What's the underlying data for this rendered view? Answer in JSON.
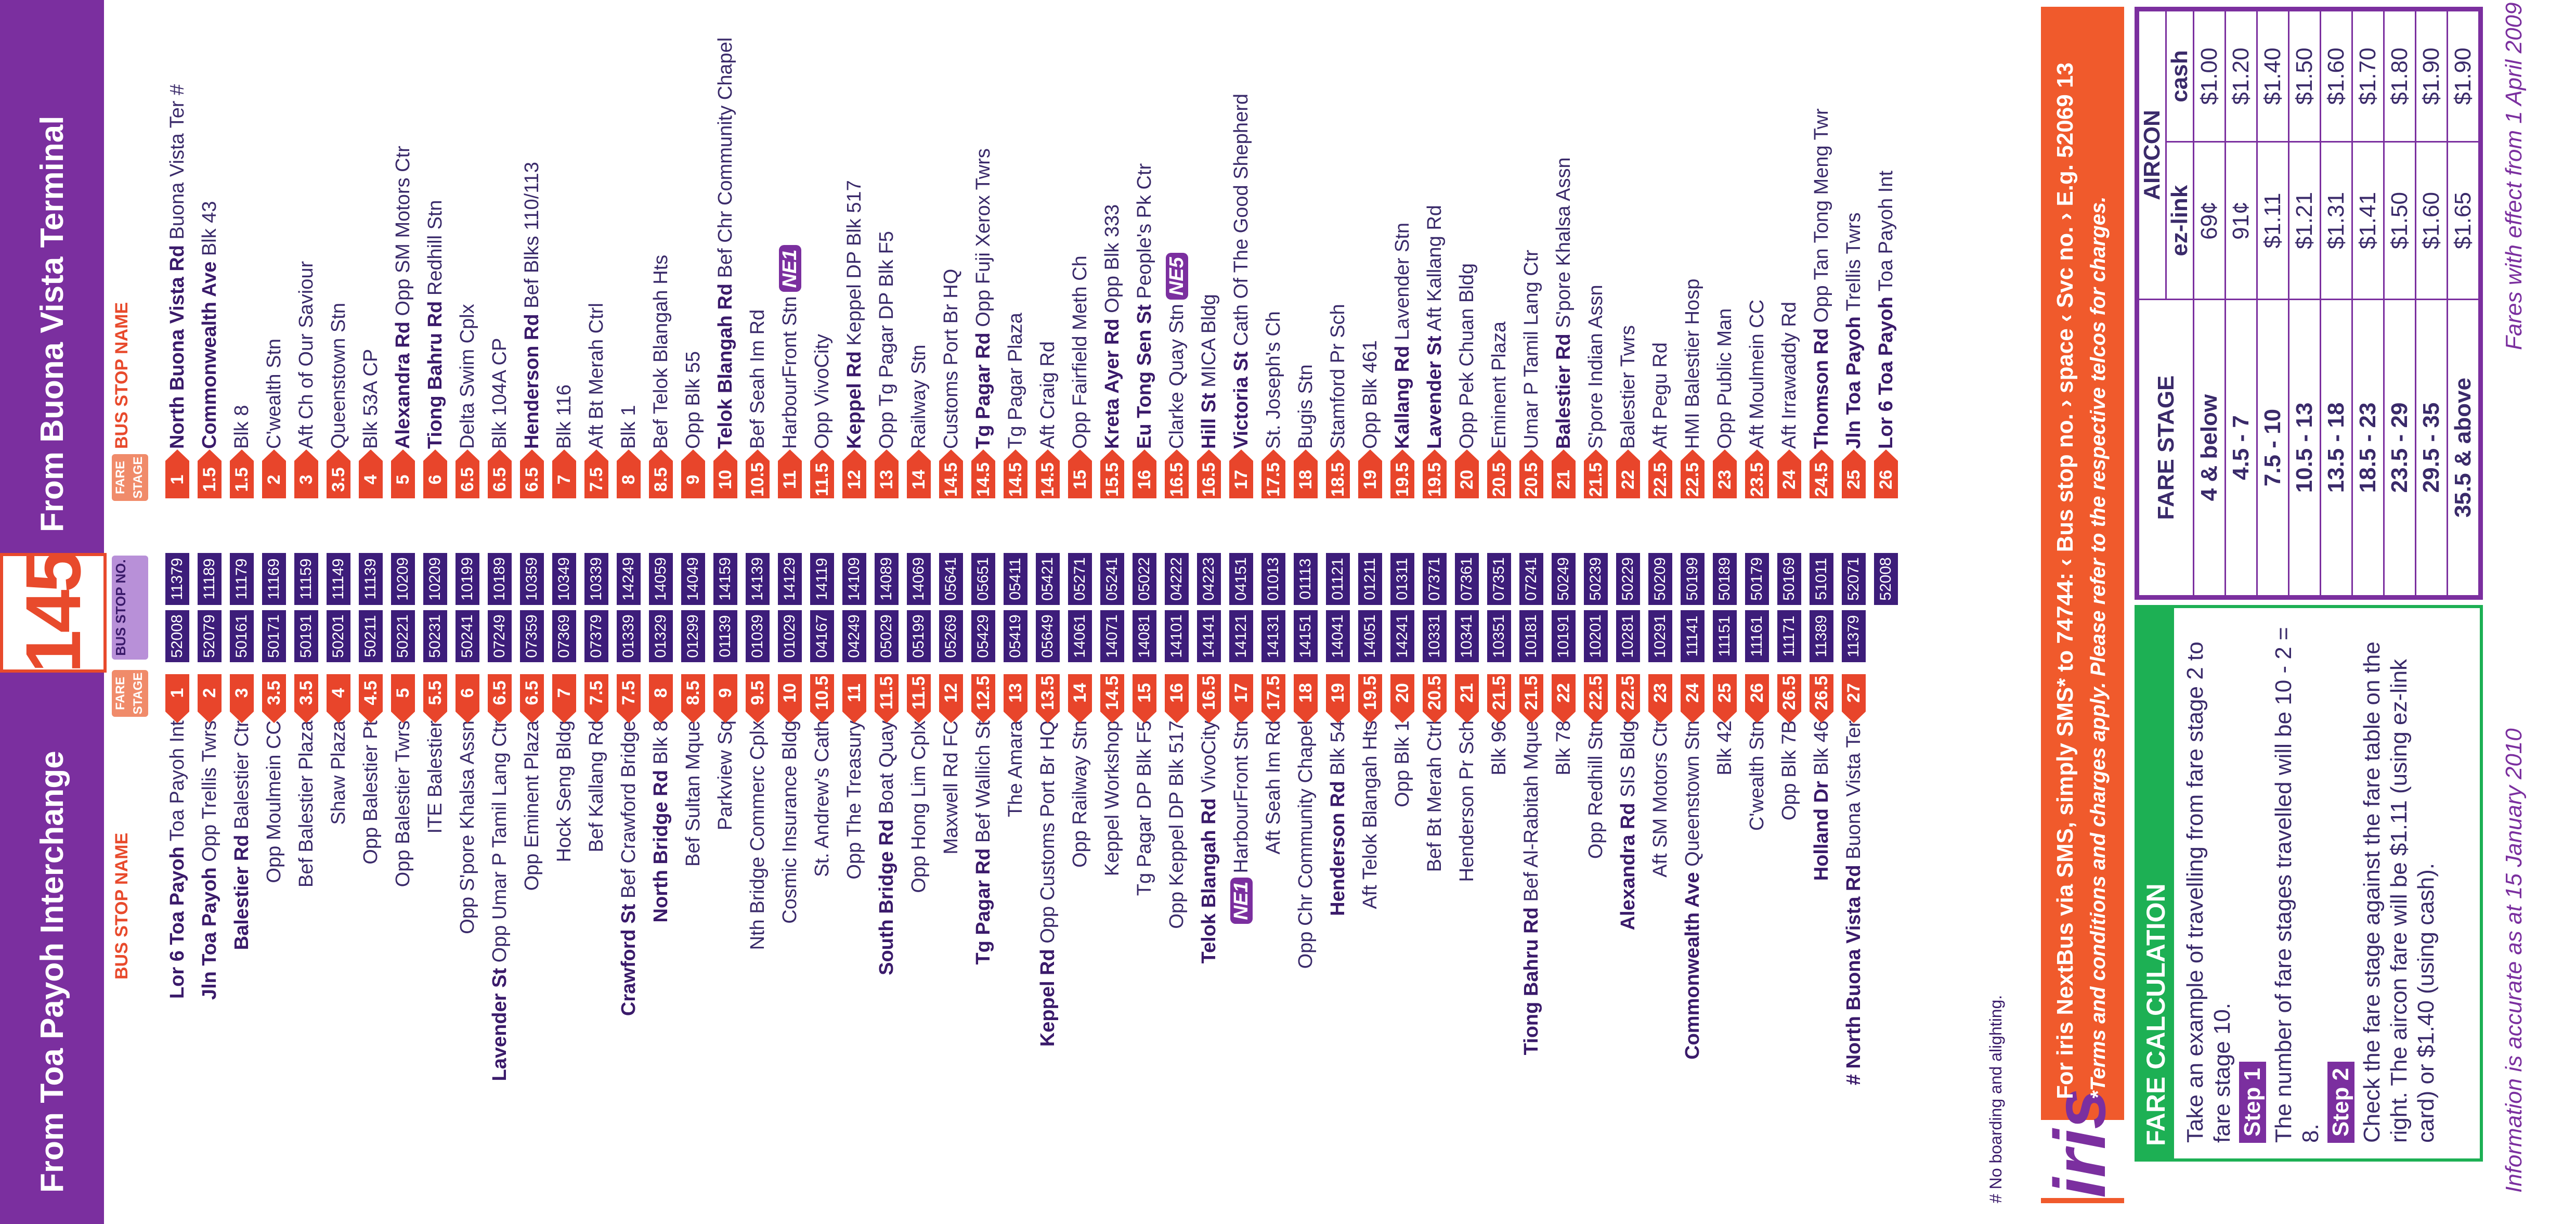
{
  "header": {
    "left_title": "From Toa Payoh Interchange",
    "right_title": "From Buona Vista Terminal",
    "route": "145"
  },
  "column_heads": {
    "bus_stop_name": "BUS STOP NAME",
    "fare_stage": "FARE STAGE",
    "bus_stop_no": "BUS STOP NO."
  },
  "rows": [
    {
      "l_bold": "Lor 6 Toa Payoh",
      "l_rest": " Toa Payoh Int",
      "lf": "1",
      "ls": "52008",
      "rs": "11379",
      "rf": "1",
      "r_bold": "North Buona Vista Rd",
      "r_rest": " Buona Vista Ter #"
    },
    {
      "l_bold": "Jln Toa Payoh",
      "l_rest": " Opp Trellis Twrs",
      "lf": "2",
      "ls": "52079",
      "rs": "11189",
      "rf": "1.5",
      "r_bold": "Commonwealth Ave",
      "r_rest": " Blk 43"
    },
    {
      "l_bold": "Balestier Rd",
      "l_rest": " Balestier Ctr",
      "lf": "3",
      "ls": "50161",
      "rs": "11179",
      "rf": "1.5",
      "r_bold": "",
      "r_rest": "Blk 8"
    },
    {
      "l_bold": "",
      "l_rest": "Opp Moulmein CC",
      "lf": "3.5",
      "ls": "50171",
      "rs": "11169",
      "rf": "2",
      "r_bold": "",
      "r_rest": "C'wealth Stn"
    },
    {
      "l_bold": "",
      "l_rest": "Bef Balestier Plaza",
      "lf": "3.5",
      "ls": "50191",
      "rs": "11159",
      "rf": "3",
      "r_bold": "",
      "r_rest": "Aft Ch of Our Saviour"
    },
    {
      "l_bold": "",
      "l_rest": "Shaw Plaza",
      "lf": "4",
      "ls": "50201",
      "rs": "11149",
      "rf": "3.5",
      "r_bold": "",
      "r_rest": "Queenstown Stn"
    },
    {
      "l_bold": "",
      "l_rest": "Opp Balestier Pt",
      "lf": "4.5",
      "ls": "50211",
      "rs": "11139",
      "rf": "4",
      "r_bold": "",
      "r_rest": "Blk 53A CP"
    },
    {
      "l_bold": "",
      "l_rest": "Opp Balestier Twrs",
      "lf": "5",
      "ls": "50221",
      "rs": "10209",
      "rf": "5",
      "r_bold": "Alexandra Rd",
      "r_rest": " Opp SM Motors Ctr"
    },
    {
      "l_bold": "",
      "l_rest": "ITE Balestier",
      "lf": "5.5",
      "ls": "50231",
      "rs": "10209",
      "rf": "6",
      "r_bold": "Tiong Bahru Rd",
      "r_rest": " Redhill Stn"
    },
    {
      "l_bold": "",
      "l_rest": "Opp S'pore Khalsa Assn",
      "lf": "6",
      "ls": "50241",
      "rs": "10199",
      "rf": "6.5",
      "r_bold": "",
      "r_rest": "Delta Swim Cplx"
    },
    {
      "l_bold": "Lavender St",
      "l_rest": " Opp Umar P Tamil Lang Ctr",
      "lf": "6.5",
      "ls": "07249",
      "rs": "10189",
      "rf": "6.5",
      "r_bold": "",
      "r_rest": "Blk 104A CP"
    },
    {
      "l_bold": "",
      "l_rest": "Opp Eminent Plaza",
      "lf": "6.5",
      "ls": "07359",
      "rs": "10359",
      "rf": "6.5",
      "r_bold": "Henderson Rd",
      "r_rest": " Bef Blks 110/113"
    },
    {
      "l_bold": "",
      "l_rest": "Hock Seng Bldg",
      "lf": "7",
      "ls": "07369",
      "rs": "10349",
      "rf": "7",
      "r_bold": "",
      "r_rest": "Blk 116"
    },
    {
      "l_bold": "",
      "l_rest": "Bef Kallang Rd",
      "lf": "7.5",
      "ls": "07379",
      "rs": "10339",
      "rf": "7.5",
      "r_bold": "",
      "r_rest": "Aft Bt Merah Ctrl"
    },
    {
      "l_bold": "Crawford St",
      "l_rest": " Bef Crawford Bridge",
      "lf": "7.5",
      "ls": "01339",
      "rs": "14249",
      "rf": "8",
      "r_bold": "",
      "r_rest": "Blk 1"
    },
    {
      "l_bold": "North Bridge Rd",
      "l_rest": " Blk 8",
      "lf": "8",
      "ls": "01329",
      "rs": "14059",
      "rf": "8.5",
      "r_bold": "",
      "r_rest": "Bef Telok Blangah Hts"
    },
    {
      "l_bold": "",
      "l_rest": "Bef Sultan Mque",
      "lf": "8.5",
      "ls": "01299",
      "rs": "14049",
      "rf": "9",
      "r_bold": "",
      "r_rest": "Opp Blk 55"
    },
    {
      "l_bold": "",
      "l_rest": "Parkview Sq",
      "lf": "9",
      "ls": "01139",
      "rs": "14159",
      "rf": "10",
      "r_bold": "Telok Blangah Rd",
      "r_rest": " Bef Chr Community Chapel"
    },
    {
      "l_bold": "",
      "l_rest": "Nth Bridge Commerc Cplx",
      "lf": "9.5",
      "ls": "01039",
      "rs": "14139",
      "rf": "10.5",
      "r_bold": "",
      "r_rest": "Bef Seah Im Rd"
    },
    {
      "l_bold": "",
      "l_rest": "Cosmic Insurance Bldg",
      "lf": "10",
      "ls": "01029",
      "rs": "14129",
      "rf": "11",
      "r_bold": "",
      "r_rest": "HarbourFront Stn",
      "r_tag": "NE1"
    },
    {
      "l_bold": "",
      "l_rest": "St. Andrew's Cath",
      "lf": "10.5",
      "ls": "04167",
      "rs": "14119",
      "rf": "11.5",
      "r_bold": "",
      "r_rest": "Opp VivoCity"
    },
    {
      "l_bold": "",
      "l_rest": "Opp The Treasury",
      "lf": "11",
      "ls": "04249",
      "rs": "14109",
      "rf": "12",
      "r_bold": "Keppel Rd",
      "r_rest": " Keppel DP Blk 517"
    },
    {
      "l_bold": "South Bridge Rd",
      "l_rest": " Boat Quay",
      "lf": "11.5",
      "ls": "05029",
      "rs": "14089",
      "rf": "13",
      "r_bold": "",
      "r_rest": "Opp Tg Pagar DP Blk F5"
    },
    {
      "l_bold": "",
      "l_rest": "Opp Hong Lim Cplx",
      "lf": "11.5",
      "ls": "05199",
      "rs": "14069",
      "rf": "14",
      "r_bold": "",
      "r_rest": "Railway Stn"
    },
    {
      "l_bold": "",
      "l_rest": "Maxwell Rd FC",
      "lf": "12",
      "ls": "05269",
      "rs": "05641",
      "rf": "14.5",
      "r_bold": "",
      "r_rest": "Customs Port Br HQ"
    },
    {
      "l_bold": "Tg Pagar Rd",
      "l_rest": " Bef Wallich St",
      "lf": "12.5",
      "ls": "05429",
      "rs": "05651",
      "rf": "14.5",
      "r_bold": "Tg Pagar Rd",
      "r_rest": " Opp Fuji Xerox Twrs"
    },
    {
      "l_bold": "",
      "l_rest": "The Amara",
      "lf": "13",
      "ls": "05419",
      "rs": "05411",
      "rf": "14.5",
      "r_bold": "",
      "r_rest": "Tg Pagar Plaza"
    },
    {
      "l_bold": "Keppel Rd",
      "l_rest": " Opp Customs Port Br HQ",
      "lf": "13.5",
      "ls": "05649",
      "rs": "05421",
      "rf": "14.5",
      "r_bold": "",
      "r_rest": "Aft Craig Rd"
    },
    {
      "l_bold": "",
      "l_rest": "Opp Railway Stn",
      "lf": "14",
      "ls": "14061",
      "rs": "05271",
      "rf": "15",
      "r_bold": "",
      "r_rest": "Opp Fairfield Meth Ch"
    },
    {
      "l_bold": "",
      "l_rest": "Keppel Workshop",
      "lf": "14.5",
      "ls": "14071",
      "rs": "05241",
      "rf": "15.5",
      "r_bold": "Kreta Ayer Rd",
      "r_rest": " Opp Blk 333"
    },
    {
      "l_bold": "",
      "l_rest": "Tg Pagar DP Blk F5",
      "lf": "15",
      "ls": "14081",
      "rs": "05022",
      "rf": "16",
      "r_bold": "Eu Tong Sen St",
      "r_rest": " People's Pk Ctr"
    },
    {
      "l_bold": "",
      "l_rest": "Opp Keppel DP Blk 517",
      "lf": "16",
      "ls": "14101",
      "rs": "04222",
      "rf": "16.5",
      "r_bold": "",
      "r_rest": "Clarke Quay Stn",
      "r_tag": "NE5"
    },
    {
      "l_bold": "Telok Blangah Rd",
      "l_rest": " VivoCity",
      "lf": "16.5",
      "ls": "14141",
      "rs": "04223",
      "rf": "16.5",
      "r_bold": "Hill St",
      "r_rest": " MICA Bldg"
    },
    {
      "l_bold": "",
      "l_rest": "HarbourFront Stn",
      "l_tag": "NE1",
      "lf": "17",
      "ls": "14121",
      "rs": "04151",
      "rf": "17",
      "r_bold": "Victoria St",
      "r_rest": " Cath Of The Good Shepherd"
    },
    {
      "l_bold": "",
      "l_rest": "Aft Seah Im Rd",
      "lf": "17.5",
      "ls": "14131",
      "rs": "01013",
      "rf": "17.5",
      "r_bold": "",
      "r_rest": "St. Joseph's Ch"
    },
    {
      "l_bold": "",
      "l_rest": "Opp Chr Community Chapel",
      "lf": "18",
      "ls": "14151",
      "rs": "01113",
      "rf": "18",
      "r_bold": "",
      "r_rest": "Bugis Stn"
    },
    {
      "l_bold": "Henderson Rd",
      "l_rest": " Blk 54",
      "lf": "19",
      "ls": "14041",
      "rs": "01121",
      "rf": "18.5",
      "r_bold": "",
      "r_rest": "Stamford Pr Sch"
    },
    {
      "l_bold": "",
      "l_rest": "Aft Telok Blangah Hts",
      "lf": "19.5",
      "ls": "14051",
      "rs": "01211",
      "rf": "19",
      "r_bold": "",
      "r_rest": "Opp Blk 461"
    },
    {
      "l_bold": "",
      "l_rest": "Opp Blk 1",
      "lf": "20",
      "ls": "14241",
      "rs": "01311",
      "rf": "19.5",
      "r_bold": "Kallang Rd",
      "r_rest": " Lavender Stn"
    },
    {
      "l_bold": "",
      "l_rest": "Bef Bt Merah Ctrl",
      "lf": "20.5",
      "ls": "10331",
      "rs": "07371",
      "rf": "19.5",
      "r_bold": "Lavender St",
      "r_rest": " Aft Kallang Rd"
    },
    {
      "l_bold": "",
      "l_rest": "Henderson Pr Sch",
      "lf": "21",
      "ls": "10341",
      "rs": "07361",
      "rf": "20",
      "r_bold": "",
      "r_rest": "Opp Pek Chuan Bldg"
    },
    {
      "l_bold": "",
      "l_rest": "Blk 96",
      "lf": "21.5",
      "ls": "10351",
      "rs": "07351",
      "rf": "20.5",
      "r_bold": "",
      "r_rest": "Eminent Plaza"
    },
    {
      "l_bold": "Tiong Bahru Rd",
      "l_rest": " Bef Al-Rabitah Mque",
      "lf": "21.5",
      "ls": "10181",
      "rs": "07241",
      "rf": "20.5",
      "r_bold": "",
      "r_rest": "Umar P Tamil Lang Ctr"
    },
    {
      "l_bold": "",
      "l_rest": "Blk 78",
      "lf": "22",
      "ls": "10191",
      "rs": "50249",
      "rf": "21",
      "r_bold": "Balestier Rd",
      "r_rest": " S'pore Khalsa Assn"
    },
    {
      "l_bold": "",
      "l_rest": "Opp Redhill Stn",
      "lf": "22.5",
      "ls": "10201",
      "rs": "50239",
      "rf": "21.5",
      "r_bold": "",
      "r_rest": "S'pore Indian Assn"
    },
    {
      "l_bold": "Alexandra Rd",
      "l_rest": " SIS Bldg",
      "lf": "22.5",
      "ls": "10281",
      "rs": "50229",
      "rf": "22",
      "r_bold": "",
      "r_rest": "Balestier Twrs"
    },
    {
      "l_bold": "",
      "l_rest": "Aft SM Motors Ctr",
      "lf": "23",
      "ls": "10291",
      "rs": "50209",
      "rf": "22.5",
      "r_bold": "",
      "r_rest": "Aft Pegu Rd"
    },
    {
      "l_bold": "Commonwealth Ave",
      "l_rest": " Queenstown Stn",
      "lf": "24",
      "ls": "11141",
      "rs": "50199",
      "rf": "22.5",
      "r_bold": "",
      "r_rest": "HMI Balestier Hosp"
    },
    {
      "l_bold": "",
      "l_rest": "Blk 42",
      "lf": "25",
      "ls": "11151",
      "rs": "50189",
      "rf": "23",
      "r_bold": "",
      "r_rest": "Opp Public Man"
    },
    {
      "l_bold": "",
      "l_rest": "C'wealth Stn",
      "lf": "26",
      "ls": "11161",
      "rs": "50179",
      "rf": "23.5",
      "r_bold": "",
      "r_rest": "Aft Moulmein CC"
    },
    {
      "l_bold": "",
      "l_rest": "Opp Blk 7B",
      "lf": "26.5",
      "ls": "11171",
      "rs": "50169",
      "rf": "24",
      "r_bold": "",
      "r_rest": "Aft Irrawaddy Rd"
    },
    {
      "l_bold": "Holland Dr",
      "l_rest": " Blk 46",
      "lf": "26.5",
      "ls": "11389",
      "rs": "51011",
      "rf": "24.5",
      "r_bold": "Thomson Rd",
      "r_rest": " Opp Tan Tong Meng Twr"
    },
    {
      "l_bold": "# North Buona Vista Rd",
      "l_rest": " Buona Vista Ter",
      "lf": "27",
      "ls": "11379",
      "rs": "52071",
      "rf": "25",
      "r_bold": "Jln Toa Payoh",
      "r_rest": " Trellis Twrs"
    },
    {
      "l_bold": "",
      "l_rest": "",
      "lf": "",
      "ls": "",
      "rs": "52008",
      "rf": "26",
      "r_bold": "Lor 6 Toa Payoh",
      "r_rest": " Toa Payoh Int"
    }
  ],
  "footnote": "# No boarding and alighting.",
  "iris": {
    "logo": "iris",
    "line1": "For iris NextBus via SMS, simply SMS* to 74744: ‹ Bus stop no. › space ‹ Svc no. › E.g. 52069 13",
    "line2": "*Terms and conditions and charges apply. Please refer to the respective telcos for charges."
  },
  "calc": {
    "title": "FARE CALCULATION",
    "intro": "Take an example of travelling from fare stage 2 to fare stage 10.",
    "step1_label": "Step 1",
    "step1_text": "The number of fare stages travelled will be 10 - 2 = 8.",
    "step2_label": "Step 2",
    "step2_text": "Check the fare stage against the fare table on the right. The aircon fare will be $1.11 (using ez-link card) or $1.40 (using cash)."
  },
  "fare_table": {
    "stage_head": "FARE STAGE",
    "aircon_head": "AIRCON",
    "ez_head": "ez-link",
    "cash_head": "cash",
    "rows": [
      {
        "stage": "4 & below",
        "ez": "69¢",
        "cash": "$1.00"
      },
      {
        "stage": "4.5 - 7",
        "ez": "91¢",
        "cash": "$1.20"
      },
      {
        "stage": "7.5 - 10",
        "ez": "$1.11",
        "cash": "$1.40"
      },
      {
        "stage": "10.5 - 13",
        "ez": "$1.21",
        "cash": "$1.50"
      },
      {
        "stage": "13.5 - 18",
        "ez": "$1.31",
        "cash": "$1.60"
      },
      {
        "stage": "18.5 - 23",
        "ez": "$1.41",
        "cash": "$1.70"
      },
      {
        "stage": "23.5 - 29",
        "ez": "$1.50",
        "cash": "$1.80"
      },
      {
        "stage": "29.5 - 35",
        "ez": "$1.60",
        "cash": "$1.90"
      },
      {
        "stage": "35.5 & above",
        "ez": "$1.65",
        "cash": "$1.90"
      }
    ]
  },
  "info": "Information is accurate as at 15 January 2010",
  "effective": "Fares with effect from 1 April 2009"
}
